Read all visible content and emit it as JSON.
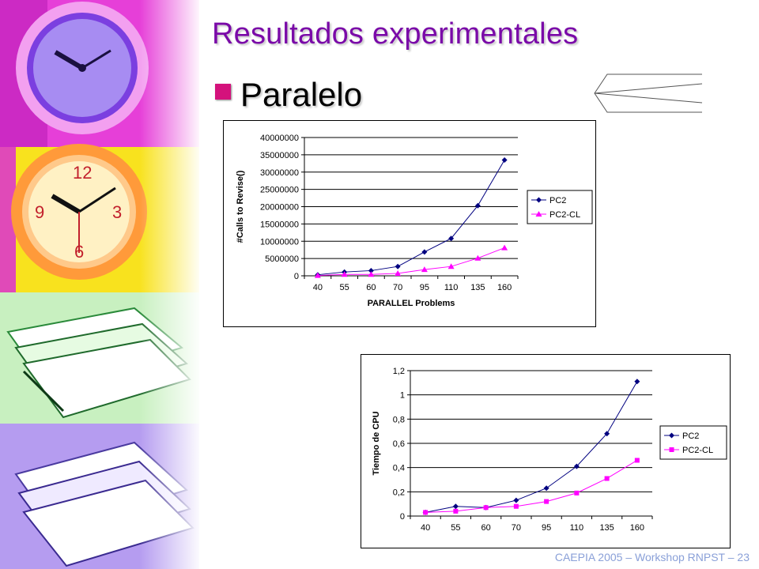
{
  "slide": {
    "title": "Resultados experimentales",
    "bullet": "Paralelo",
    "footer": "CAEPIA 2005 – Workshop RNPST – 23",
    "colors": {
      "title": "#7a0aa8",
      "bullet": "#d4127c",
      "footer": "#8aa0d8",
      "series_pc2": "#000080",
      "series_pc2cl": "#ff00ff"
    },
    "sidebar_images": [
      "purple-clock",
      "orange-clock",
      "green-papers",
      "violet-papers"
    ]
  },
  "chart_data": [
    {
      "type": "line",
      "categories": [
        "40",
        "55",
        "60",
        "70",
        "95",
        "110",
        "135",
        "160"
      ],
      "series": [
        {
          "name": "PC2",
          "marker": "diamond",
          "values": [
            300000,
            1100000,
            1500000,
            2700000,
            6900000,
            10800000,
            20300000,
            33500000
          ]
        },
        {
          "name": "PC2-CL",
          "marker": "triangle",
          "values": [
            100000,
            400000,
            400000,
            700000,
            1800000,
            2700000,
            5100000,
            8100000
          ]
        }
      ],
      "xlabel": "PARALLEL Problems",
      "ylabel": "#Calls to Revise()",
      "ylim": [
        0,
        40000000
      ],
      "yticks": [
        "0",
        "5000000",
        "10000000",
        "15000000",
        "20000000",
        "25000000",
        "30000000",
        "35000000",
        "40000000"
      ],
      "legend": "right",
      "grid": true
    },
    {
      "type": "line",
      "categories": [
        "40",
        "55",
        "60",
        "70",
        "95",
        "110",
        "135",
        "160"
      ],
      "series": [
        {
          "name": "PC2",
          "marker": "diamond",
          "values": [
            0.03,
            0.08,
            0.07,
            0.13,
            0.23,
            0.41,
            0.68,
            1.11
          ]
        },
        {
          "name": "PC2-CL",
          "marker": "square",
          "values": [
            0.03,
            0.04,
            0.07,
            0.08,
            0.12,
            0.19,
            0.31,
            0.46
          ]
        }
      ],
      "xlabel": "",
      "ylabel": "Tiempo de CPU",
      "ylim": [
        0,
        1.2
      ],
      "yticks": [
        "0",
        "0,2",
        "0,4",
        "0,6",
        "0,8",
        "1",
        "1,2"
      ],
      "legend": "right",
      "grid": true
    }
  ]
}
